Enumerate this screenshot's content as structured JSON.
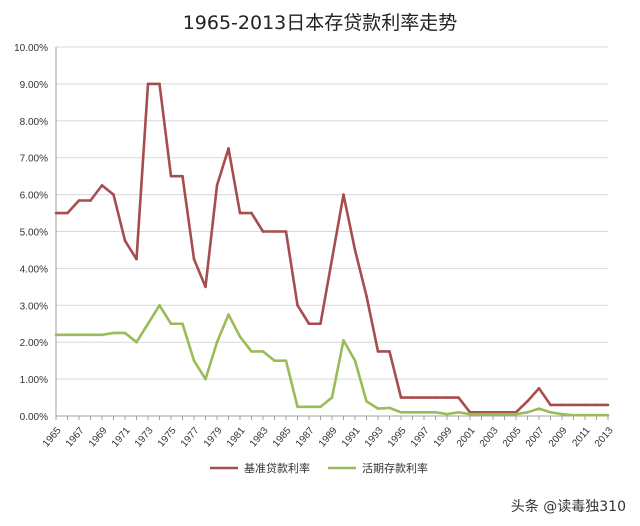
{
  "chart_data": {
    "type": "line",
    "title": "1965-2013日本存贷款利率走势",
    "xlabel": "",
    "ylabel": "",
    "ylim": [
      0,
      0.1
    ],
    "yticks": [
      "0.00%",
      "1.00%",
      "2.00%",
      "3.00%",
      "4.00%",
      "5.00%",
      "6.00%",
      "7.00%",
      "8.00%",
      "9.00%",
      "10.00%"
    ],
    "x": [
      1965,
      1966,
      1967,
      1968,
      1969,
      1970,
      1971,
      1972,
      1973,
      1974,
      1975,
      1976,
      1977,
      1978,
      1979,
      1980,
      1981,
      1982,
      1983,
      1984,
      1985,
      1986,
      1987,
      1988,
      1989,
      1990,
      1991,
      1992,
      1993,
      1994,
      1995,
      1996,
      1997,
      1998,
      1999,
      2000,
      2001,
      2002,
      2003,
      2004,
      2005,
      2006,
      2007,
      2008,
      2009,
      2010,
      2011,
      2012,
      2013
    ],
    "xticks": [
      "1965",
      "1967",
      "1969",
      "1971",
      "1973",
      "1975",
      "1977",
      "1979",
      "1981",
      "1983",
      "1985",
      "1987",
      "1989",
      "1991",
      "1993",
      "1995",
      "1997",
      "1999",
      "2001",
      "2003",
      "2005",
      "2007",
      "2009",
      "2011",
      "2013"
    ],
    "grid": true,
    "legend_position": "bottom",
    "series": [
      {
        "name": "基准贷款利率",
        "color": "#a64d4d",
        "values": [
          0.055,
          0.055,
          0.0584,
          0.0584,
          0.0625,
          0.06,
          0.0475,
          0.0425,
          0.09,
          0.09,
          0.065,
          0.065,
          0.0425,
          0.035,
          0.0625,
          0.0725,
          0.055,
          0.055,
          0.05,
          0.05,
          0.05,
          0.03,
          0.025,
          0.025,
          0.0425,
          0.06,
          0.045,
          0.0325,
          0.0175,
          0.0175,
          0.005,
          0.005,
          0.005,
          0.005,
          0.005,
          0.005,
          0.001,
          0.001,
          0.001,
          0.001,
          0.001,
          0.004,
          0.0075,
          0.003,
          0.003,
          0.003,
          0.003,
          0.003,
          0.003
        ]
      },
      {
        "name": "活期存款利率",
        "color": "#9bbb59",
        "values": [
          0.022,
          0.022,
          0.022,
          0.022,
          0.022,
          0.0225,
          0.0225,
          0.02,
          0.025,
          0.03,
          0.025,
          0.025,
          0.015,
          0.01,
          0.02,
          0.0275,
          0.0215,
          0.0175,
          0.0175,
          0.015,
          0.015,
          0.0025,
          0.0025,
          0.0025,
          0.005,
          0.0205,
          0.015,
          0.004,
          0.002,
          0.0022,
          0.001,
          0.001,
          0.001,
          0.001,
          0.0005,
          0.001,
          0.0005,
          0.0005,
          0.0005,
          0.0005,
          0.0005,
          0.001,
          0.002,
          0.001,
          0.0005,
          0.0002,
          0.0002,
          0.0002,
          0.0002
        ]
      }
    ]
  },
  "watermark": {
    "text": "头条 @读毒独310",
    "icon": "toutiao-logo-icon"
  }
}
